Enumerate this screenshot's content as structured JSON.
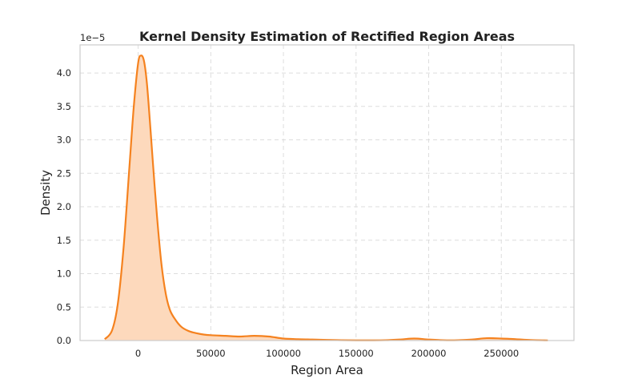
{
  "chart_data": {
    "type": "area",
    "title": "Kernel Density Estimation of Rectified Region Areas",
    "xlabel": "Region Area",
    "ylabel": "Density",
    "y_offset_label": "1e−5",
    "xlim": [
      -40000,
      300000
    ],
    "ylim": [
      0,
      4.42
    ],
    "x_ticks": [
      0,
      50000,
      100000,
      150000,
      200000,
      250000
    ],
    "x_tick_labels": [
      "0",
      "50000",
      "100000",
      "150000",
      "200000",
      "250000"
    ],
    "y_ticks": [
      0,
      0.5,
      1.0,
      1.5,
      2.0,
      2.5,
      3.0,
      3.5,
      4.0
    ],
    "y_tick_labels": [
      "0.0",
      "0.5",
      "1.0",
      "1.5",
      "2.0",
      "2.5",
      "3.0",
      "3.5",
      "4.0"
    ],
    "grid": true,
    "colors": {
      "line": "#f5821f",
      "fill": "#fdd9bc"
    },
    "series": [
      {
        "x": [
          -23000,
          -18000,
          -14000,
          -10000,
          -6000,
          -3000,
          0,
          2000,
          4000,
          6000,
          8000,
          10000,
          13000,
          16000,
          19000,
          22000,
          26000,
          30000,
          35000,
          40000,
          45000,
          50000,
          60000,
          70000,
          80000,
          90000,
          100000,
          110000,
          120000,
          130000,
          140000,
          150000,
          160000,
          170000,
          180000,
          190000,
          200000,
          210000,
          220000,
          230000,
          240000,
          250000,
          260000,
          270000,
          282000
        ],
        "y": [
          0.02,
          0.15,
          0.55,
          1.4,
          2.6,
          3.5,
          4.15,
          4.26,
          4.18,
          3.85,
          3.3,
          2.7,
          1.85,
          1.15,
          0.7,
          0.45,
          0.3,
          0.2,
          0.14,
          0.11,
          0.09,
          0.08,
          0.07,
          0.06,
          0.07,
          0.06,
          0.03,
          0.02,
          0.015,
          0.01,
          0.005,
          0.003,
          0.003,
          0.005,
          0.015,
          0.03,
          0.015,
          0.005,
          0.005,
          0.015,
          0.035,
          0.03,
          0.02,
          0.008,
          0.002
        ]
      }
    ]
  }
}
